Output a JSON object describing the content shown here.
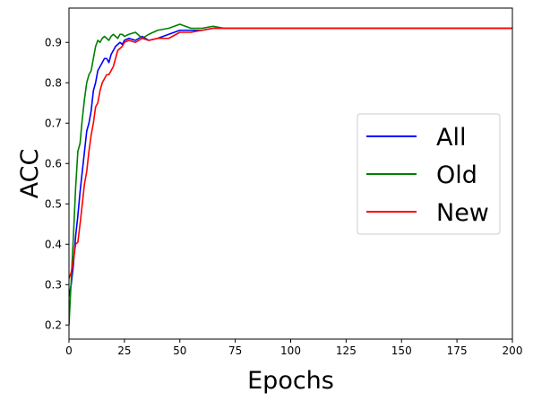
{
  "chart_data": {
    "type": "line",
    "title": "",
    "xlabel": "Epochs",
    "ylabel": "ACC",
    "xlim": [
      0,
      200
    ],
    "ylim": [
      0.165,
      0.985
    ],
    "xticks": [
      "0",
      "25",
      "50",
      "75",
      "100",
      "125",
      "150",
      "175",
      "200"
    ],
    "yticks": [
      "0.2",
      "0.3",
      "0.4",
      "0.5",
      "0.6",
      "0.7",
      "0.8",
      "0.9"
    ],
    "grid": false,
    "legend_position": "center-right",
    "series": [
      {
        "name": "All",
        "color": "#0000ff",
        "x": [
          0,
          1,
          2,
          3,
          4,
          5,
          6,
          7,
          8,
          9,
          10,
          11,
          12,
          13,
          14,
          15,
          16,
          17,
          18,
          19,
          20,
          21,
          22,
          23,
          24,
          25,
          27,
          30,
          33,
          36,
          40,
          45,
          50,
          55,
          60,
          65,
          70,
          75,
          80,
          85,
          90,
          95,
          100,
          105,
          110,
          115,
          120,
          125,
          130,
          135,
          140,
          145,
          150,
          155,
          160,
          165,
          170,
          175,
          180,
          185,
          190,
          195,
          200
        ],
        "y": [
          0.27,
          0.3,
          0.35,
          0.42,
          0.47,
          0.53,
          0.58,
          0.63,
          0.68,
          0.7,
          0.73,
          0.78,
          0.8,
          0.83,
          0.84,
          0.85,
          0.86,
          0.86,
          0.85,
          0.87,
          0.88,
          0.89,
          0.895,
          0.9,
          0.895,
          0.905,
          0.91,
          0.905,
          0.915,
          0.905,
          0.91,
          0.92,
          0.93,
          0.93,
          0.93,
          0.935,
          0.935,
          0.935,
          0.935,
          0.935,
          0.935,
          0.935,
          0.935,
          0.935,
          0.935,
          0.935,
          0.935,
          0.935,
          0.935,
          0.935,
          0.935,
          0.935,
          0.935,
          0.935,
          0.935,
          0.935,
          0.935,
          0.935,
          0.935,
          0.935,
          0.935,
          0.935,
          0.935
        ]
      },
      {
        "name": "Old",
        "color": "#008000",
        "x": [
          0,
          1,
          2,
          3,
          4,
          5,
          6,
          7,
          8,
          9,
          10,
          11,
          12,
          13,
          14,
          15,
          16,
          17,
          18,
          19,
          20,
          21,
          22,
          23,
          24,
          25,
          27,
          30,
          33,
          36,
          40,
          45,
          50,
          55,
          60,
          65,
          70,
          75,
          80,
          85,
          90,
          95,
          100,
          105,
          110,
          115,
          120,
          125,
          130,
          135,
          140,
          145,
          150,
          155,
          160,
          165,
          170,
          175,
          180,
          185,
          190,
          195,
          200
        ],
        "y": [
          0.2,
          0.31,
          0.42,
          0.54,
          0.63,
          0.65,
          0.71,
          0.76,
          0.8,
          0.82,
          0.83,
          0.86,
          0.89,
          0.905,
          0.9,
          0.91,
          0.915,
          0.91,
          0.905,
          0.915,
          0.92,
          0.915,
          0.91,
          0.92,
          0.92,
          0.915,
          0.92,
          0.925,
          0.91,
          0.92,
          0.93,
          0.935,
          0.945,
          0.935,
          0.935,
          0.94,
          0.935,
          0.935,
          0.935,
          0.935,
          0.935,
          0.935,
          0.935,
          0.935,
          0.935,
          0.935,
          0.935,
          0.935,
          0.935,
          0.935,
          0.935,
          0.935,
          0.935,
          0.935,
          0.935,
          0.935,
          0.935,
          0.935,
          0.935,
          0.935,
          0.935,
          0.935,
          0.935
        ]
      },
      {
        "name": "New",
        "color": "#ff0000",
        "x": [
          0,
          1,
          2,
          3,
          4,
          5,
          6,
          7,
          8,
          9,
          10,
          11,
          12,
          13,
          14,
          15,
          16,
          17,
          18,
          19,
          20,
          21,
          22,
          23,
          24,
          25,
          27,
          30,
          33,
          36,
          40,
          45,
          50,
          55,
          60,
          65,
          70,
          75,
          80,
          85,
          90,
          95,
          100,
          105,
          110,
          115,
          120,
          125,
          130,
          135,
          140,
          145,
          150,
          155,
          160,
          165,
          170,
          175,
          180,
          185,
          190,
          195,
          200
        ],
        "y": [
          0.315,
          0.33,
          0.36,
          0.4,
          0.405,
          0.45,
          0.5,
          0.55,
          0.58,
          0.63,
          0.67,
          0.7,
          0.74,
          0.75,
          0.78,
          0.8,
          0.81,
          0.82,
          0.82,
          0.83,
          0.84,
          0.86,
          0.88,
          0.885,
          0.89,
          0.9,
          0.905,
          0.9,
          0.91,
          0.905,
          0.91,
          0.91,
          0.925,
          0.925,
          0.93,
          0.935,
          0.935,
          0.935,
          0.935,
          0.935,
          0.935,
          0.935,
          0.935,
          0.935,
          0.935,
          0.935,
          0.935,
          0.935,
          0.935,
          0.935,
          0.935,
          0.935,
          0.935,
          0.935,
          0.935,
          0.935,
          0.935,
          0.935,
          0.935,
          0.935,
          0.935,
          0.935,
          0.935
        ]
      }
    ]
  }
}
